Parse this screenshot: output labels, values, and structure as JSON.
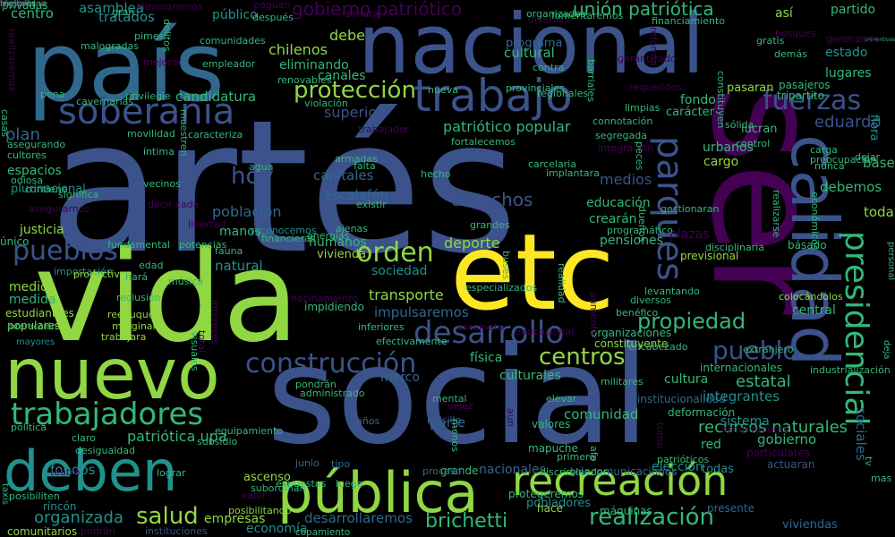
{
  "palette": {
    "background": "#000000",
    "purple": "#440154",
    "indigo": "#3b528b",
    "blue": "#31688e",
    "teal": "#21918c",
    "green": "#35b779",
    "lime": "#90d743",
    "yellow": "#fde725"
  },
  "words": [
    {
      "text": "artés",
      "color": "#3b528b"
    },
    {
      "text": "ser",
      "color": "#440154"
    },
    {
      "text": "social",
      "color": "#3b528b"
    },
    {
      "text": "vida",
      "color": "#90d743"
    },
    {
      "text": "país",
      "color": "#31688e"
    },
    {
      "text": "nacional",
      "color": "#3b528b"
    },
    {
      "text": "etc",
      "color": "#fde725"
    },
    {
      "text": "calidad",
      "color": "#3b528b"
    },
    {
      "text": "nuevo",
      "color": "#90d743"
    },
    {
      "text": "deben",
      "color": "#21918c"
    },
    {
      "text": "pública",
      "color": "#90d743"
    },
    {
      "text": "trabajo",
      "color": "#3b528b"
    },
    {
      "text": "recreación",
      "color": "#90d743"
    },
    {
      "text": "soberanía",
      "color": "#3b528b"
    },
    {
      "text": "presidencial",
      "color": "#35b779"
    },
    {
      "text": "parques",
      "color": "#3b528b"
    },
    {
      "text": "fuerzas",
      "color": "#3b528b"
    },
    {
      "text": "desarrollo",
      "color": "#3b528b"
    },
    {
      "text": "construcción",
      "color": "#3b528b"
    },
    {
      "text": "trabajadores",
      "color": "#35b779"
    },
    {
      "text": "pueblos",
      "color": "#3b528b"
    },
    {
      "text": "orden",
      "color": "#90d743"
    },
    {
      "text": "protección",
      "color": "#90d743"
    },
    {
      "text": "centros",
      "color": "#90d743"
    },
    {
      "text": "pueblo",
      "color": "#3b528b"
    },
    {
      "text": "realización",
      "color": "#35b779"
    },
    {
      "text": "salud",
      "color": "#90d743"
    },
    {
      "text": "brichetti",
      "color": "#35b779"
    },
    {
      "text": "propiedad",
      "color": "#35b779"
    },
    {
      "text": "hoy",
      "color": "#3b528b"
    },
    {
      "text": "derechos",
      "color": "#3b528b"
    },
    {
      "text": "organizada",
      "color": "#21918c"
    },
    {
      "text": "eduardo",
      "color": "#3b528b"
    },
    {
      "text": "unión patriótica",
      "color": "#35b779"
    },
    {
      "text": "gobierno patriótico",
      "color": "#440154"
    },
    {
      "text": "recursos naturales",
      "color": "#35b779"
    },
    {
      "text": "estatal",
      "color": "#35b779"
    },
    {
      "text": "patriótico popular",
      "color": "#35b779"
    },
    {
      "text": "superior",
      "color": "#3b528b"
    },
    {
      "text": "población",
      "color": "#31688e"
    },
    {
      "text": "transporte",
      "color": "#90d743"
    },
    {
      "text": "impulsaremos",
      "color": "#31688e"
    },
    {
      "text": "deporte",
      "color": "#90d743"
    },
    {
      "text": "parte",
      "color": "#31688e"
    },
    {
      "text": "desarrollaremos",
      "color": "#31688e"
    },
    {
      "text": "medios",
      "color": "#3b528b"
    },
    {
      "text": "debe",
      "color": "#90d743"
    },
    {
      "text": "plan",
      "color": "#31688e"
    },
    {
      "text": "patriótica upa",
      "color": "#35b779"
    },
    {
      "text": "centro",
      "color": "#35b779"
    },
    {
      "text": "chilenos",
      "color": "#90d743"
    },
    {
      "text": "integrantes",
      "color": "#21918c"
    },
    {
      "text": "sociales",
      "color": "#31688e"
    },
    {
      "text": "capitales",
      "color": "#31688e"
    },
    {
      "text": "escalafón",
      "color": "#31688e"
    },
    {
      "text": "candidatura",
      "color": "#35b779"
    },
    {
      "text": "cultural",
      "color": "#35b779"
    },
    {
      "text": "comunidad",
      "color": "#35b779"
    },
    {
      "text": "gobierno",
      "color": "#35b779"
    },
    {
      "text": "fondos",
      "color": "#21918c"
    },
    {
      "text": "natural",
      "color": "#21918c"
    },
    {
      "text": "base",
      "color": "#35b779"
    },
    {
      "text": "debemos",
      "color": "#35b779"
    },
    {
      "text": "toda",
      "color": "#90d743"
    },
    {
      "text": "educación",
      "color": "#35b779"
    },
    {
      "text": "crearán",
      "color": "#35b779"
    },
    {
      "text": "sistema",
      "color": "#21918c"
    },
    {
      "text": "cargo",
      "color": "#90d743"
    },
    {
      "text": "urbanos",
      "color": "#35b779"
    },
    {
      "text": "fondo",
      "color": "#35b779"
    },
    {
      "text": "humanos",
      "color": "#35b779"
    },
    {
      "text": "sociedad",
      "color": "#21918c"
    },
    {
      "text": "elección",
      "color": "#21918c"
    },
    {
      "text": "lugares",
      "color": "#35b779"
    },
    {
      "text": "estado",
      "color": "#21918c"
    },
    {
      "text": "partido",
      "color": "#35b779"
    },
    {
      "text": "asamblea",
      "color": "#21918c"
    },
    {
      "text": "tratados",
      "color": "#21918c"
    },
    {
      "text": "público",
      "color": "#21918c"
    },
    {
      "text": "privadas",
      "color": "#35b779"
    },
    {
      "text": "economía",
      "color": "#21918c"
    },
    {
      "text": "empresas",
      "color": "#90d743"
    },
    {
      "text": "plazas",
      "color": "#440154"
    },
    {
      "text": "medida",
      "color": "#35b779"
    },
    {
      "text": "medio",
      "color": "#90d743"
    },
    {
      "text": "manos",
      "color": "#35b779"
    },
    {
      "text": "espacios",
      "color": "#35b779"
    },
    {
      "text": "justicia",
      "color": "#90d743"
    },
    {
      "text": "red",
      "color": "#35b779"
    },
    {
      "text": "central",
      "color": "#35b779"
    },
    {
      "text": "cultura",
      "color": "#35b779"
    },
    {
      "text": "pensiones",
      "color": "#35b779"
    },
    {
      "text": "culturales",
      "color": "#35b779"
    },
    {
      "text": "física",
      "color": "#35b779"
    },
    {
      "text": "marco",
      "color": "#31688e"
    },
    {
      "text": "nacionales",
      "color": "#31688e"
    },
    {
      "text": "todas",
      "color": "#21918c"
    },
    {
      "text": "así",
      "color": "#90d743"
    },
    {
      "text": "viviendas",
      "color": "#31688e"
    },
    {
      "text": "lucran",
      "color": "#35b779"
    },
    {
      "text": "programa",
      "color": "#31688e"
    },
    {
      "text": "eliminando",
      "color": "#35b779"
    },
    {
      "text": "canales",
      "color": "#35b779"
    },
    {
      "text": "vivienda",
      "color": "#90d743"
    },
    {
      "text": "pasaran",
      "color": "#90d743"
    },
    {
      "text": "carácter",
      "color": "#35b779"
    },
    {
      "text": "flora",
      "color": "#21918c"
    },
    {
      "text": "plurinacional",
      "color": "#21918c"
    },
    {
      "text": "único",
      "color": "#35b779"
    },
    {
      "text": "estudiantiles",
      "color": "#90d743"
    },
    {
      "text": "populares",
      "color": "#90d743"
    },
    {
      "text": "ascenso",
      "color": "#90d743"
    },
    {
      "text": "presente",
      "color": "#31688e"
    },
    {
      "text": "máquinas",
      "color": "#35b779"
    },
    {
      "text": "mapuche",
      "color": "#35b779"
    },
    {
      "text": "pobladores",
      "color": "#21918c"
    },
    {
      "text": "hace",
      "color": "#90d743"
    },
    {
      "text": "constituyente",
      "color": "#90d743"
    },
    {
      "text": "organizaciones",
      "color": "#35b779"
    },
    {
      "text": "pasajeros",
      "color": "#35b779"
    },
    {
      "text": "tripartito",
      "color": "#35b779"
    },
    {
      "text": "preventivas",
      "color": "#35b779"
    },
    {
      "text": "básado",
      "color": "#35b779"
    },
    {
      "text": "previsional",
      "color": "#90d743"
    },
    {
      "text": "internacionales",
      "color": "#35b779"
    },
    {
      "text": "industrialización",
      "color": "#35b779"
    },
    {
      "text": "aseguradoras",
      "color": "#440154"
    },
    {
      "text": "particulares",
      "color": "#440154"
    },
    {
      "text": "actuaran",
      "color": "#3b528b"
    },
    {
      "text": "deformación",
      "color": "#35b779"
    },
    {
      "text": "valores",
      "color": "#35b779"
    },
    {
      "text": "institucionalidad",
      "color": "#31688e"
    },
    {
      "text": "rincón",
      "color": "#21918c"
    },
    {
      "text": "comunitarios",
      "color": "#90d743"
    },
    {
      "text": "posibilitando",
      "color": "#90d743"
    },
    {
      "text": "copamiento",
      "color": "#35b779"
    },
    {
      "text": "telecomunicaciones",
      "color": "#31688e"
    },
    {
      "text": "protegeremos",
      "color": "#35b779"
    },
    {
      "text": "demás",
      "color": "#35b779"
    },
    {
      "text": "bosques",
      "color": "#440154"
    },
    {
      "text": "podrán",
      "color": "#440154"
    },
    {
      "text": "instituciones",
      "color": "#3b528b"
    },
    {
      "text": "bolsillo",
      "color": "#3b528b"
    },
    {
      "text": "grande",
      "color": "#35b779"
    },
    {
      "text": "discriminador",
      "color": "#35b779"
    },
    {
      "text": "primera",
      "color": "#35b779"
    },
    {
      "text": "elevar",
      "color": "#35b779"
    },
    {
      "text": "proceso",
      "color": "#31688e"
    },
    {
      "text": "luego",
      "color": "#35b779"
    },
    {
      "text": "años",
      "color": "#31688e"
    },
    {
      "text": "junio",
      "color": "#31688e"
    },
    {
      "text": "tipo",
      "color": "#31688e"
    },
    {
      "text": "claro",
      "color": "#35b779"
    },
    {
      "text": "política",
      "color": "#35b779"
    },
    {
      "text": "desigualdad",
      "color": "#35b779"
    },
    {
      "text": "lograr",
      "color": "#35b779"
    },
    {
      "text": "equipamiento",
      "color": "#35b779"
    },
    {
      "text": "subsidio",
      "color": "#35b779"
    },
    {
      "text": "subordinan",
      "color": "#35b779"
    },
    {
      "text": "pondrán",
      "color": "#35b779"
    },
    {
      "text": "administrado",
      "color": "#35b779"
    },
    {
      "text": "mental",
      "color": "#35b779"
    },
    {
      "text": "asesinato",
      "color": "#440154"
    },
    {
      "text": "educacional",
      "color": "#440154"
    },
    {
      "text": "benéfico",
      "color": "#35b779"
    },
    {
      "text": "encabezado",
      "color": "#35b779"
    },
    {
      "text": "extranjero",
      "color": "#35b779"
    },
    {
      "text": "colocándolos",
      "color": "#90d743"
    },
    {
      "text": "disciplinaria",
      "color": "#35b779"
    },
    {
      "text": "hacinamiento",
      "color": "#440154"
    },
    {
      "text": "impidiendo",
      "color": "#35b779"
    },
    {
      "text": "reclusión",
      "color": "#35b779"
    },
    {
      "text": "reeduquen",
      "color": "#90d743"
    },
    {
      "text": "marginal",
      "color": "#90d743"
    },
    {
      "text": "trabajara",
      "color": "#90d743"
    },
    {
      "text": "interacción",
      "color": "#35b779"
    },
    {
      "text": "mayores",
      "color": "#21918c"
    },
    {
      "text": "importación",
      "color": "#21918c"
    },
    {
      "text": "productivo",
      "color": "#90d743"
    },
    {
      "text": "hará",
      "color": "#35b779"
    },
    {
      "text": "música",
      "color": "#35b779"
    },
    {
      "text": "edad",
      "color": "#35b779"
    },
    {
      "text": "fauna",
      "color": "#35b779"
    },
    {
      "text": "reconocemos",
      "color": "#21918c"
    },
    {
      "text": "financieras",
      "color": "#35b779"
    },
    {
      "text": "energías",
      "color": "#35b779"
    },
    {
      "text": "potencias",
      "color": "#35b779"
    },
    {
      "text": "fundamental",
      "color": "#35b779"
    },
    {
      "text": "asegurarnos",
      "color": "#440154"
    },
    {
      "text": "decir cada",
      "color": "#440154"
    },
    {
      "text": "libertad",
      "color": "#440154"
    },
    {
      "text": "ajenas",
      "color": "#35b779"
    },
    {
      "text": "existir",
      "color": "#35b779"
    },
    {
      "text": "grandes",
      "color": "#35b779"
    },
    {
      "text": "programático",
      "color": "#35b779"
    },
    {
      "text": "hecho",
      "color": "#35b779"
    },
    {
      "text": "falta",
      "color": "#35b779"
    },
    {
      "text": "agua",
      "color": "#35b779"
    },
    {
      "text": "íntima",
      "color": "#35b779"
    },
    {
      "text": "vecinos",
      "color": "#35b779"
    },
    {
      "text": "significa",
      "color": "#35b779"
    },
    {
      "text": "contiene",
      "color": "#35b779"
    },
    {
      "text": "cultores",
      "color": "#35b779"
    },
    {
      "text": "asegurando",
      "color": "#35b779"
    },
    {
      "text": "casas",
      "color": "#35b779"
    },
    {
      "text": "odiosa",
      "color": "#35b779"
    },
    {
      "text": "movilidad",
      "color": "#35b779"
    },
    {
      "text": "caracteriza",
      "color": "#35b779"
    },
    {
      "text": "trabajador",
      "color": "#440154"
    },
    {
      "text": "muestren",
      "color": "#35b779"
    },
    {
      "text": "cavernarias",
      "color": "#35b779"
    },
    {
      "text": "privilegie",
      "color": "#35b779"
    },
    {
      "text": "pena",
      "color": "#35b779"
    },
    {
      "text": "violación",
      "color": "#35b779"
    },
    {
      "text": "renovables",
      "color": "#35b779"
    },
    {
      "text": "nueva",
      "color": "#35b779"
    },
    {
      "text": "provinciales",
      "color": "#35b779"
    },
    {
      "text": "regionales",
      "color": "#35b779"
    },
    {
      "text": "requeridos",
      "color": "#440154"
    },
    {
      "text": "limpias",
      "color": "#35b779"
    },
    {
      "text": "sólida",
      "color": "#35b779"
    },
    {
      "text": "connotación",
      "color": "#35b779"
    },
    {
      "text": "segregada",
      "color": "#35b779"
    },
    {
      "text": "integración",
      "color": "#440154"
    },
    {
      "text": "fortalecemos",
      "color": "#35b779"
    },
    {
      "text": "carcelaria",
      "color": "#35b779"
    },
    {
      "text": "implantara",
      "color": "#35b779"
    },
    {
      "text": "armadas",
      "color": "#35b779"
    },
    {
      "text": "control",
      "color": "#35b779"
    },
    {
      "text": "gestionaran",
      "color": "#35b779"
    },
    {
      "text": "carga",
      "color": "#35b779"
    },
    {
      "text": "preocupación",
      "color": "#35b779"
    },
    {
      "text": "nunca",
      "color": "#35b779"
    },
    {
      "text": "peces",
      "color": "#35b779"
    },
    {
      "text": "dejar",
      "color": "#35b779"
    },
    {
      "text": "realizarse",
      "color": "#35b779"
    },
    {
      "text": "económicos",
      "color": "#35b779"
    },
    {
      "text": "diversos",
      "color": "#35b779"
    },
    {
      "text": "levantando",
      "color": "#35b779"
    },
    {
      "text": "realidad",
      "color": "#35b779"
    },
    {
      "text": "mas",
      "color": "#35b779"
    },
    {
      "text": "tv",
      "color": "#35b779"
    },
    {
      "text": "personal",
      "color": "#35b779"
    },
    {
      "text": "deja",
      "color": "#35b779"
    },
    {
      "text": "aimara",
      "color": "#440154"
    },
    {
      "text": "organizados",
      "color": "#35b779"
    },
    {
      "text": "financiamiento",
      "color": "#35b779"
    },
    {
      "text": "diversas",
      "color": "#440154"
    },
    {
      "text": "fomentaremos",
      "color": "#35b779"
    },
    {
      "text": "eliminaremos",
      "color": "#440154"
    },
    {
      "text": "paguen",
      "color": "#440154"
    },
    {
      "text": "después",
      "color": "#35b779"
    },
    {
      "text": "comunidades",
      "color": "#35b779"
    },
    {
      "text": "empleador",
      "color": "#35b779"
    },
    {
      "text": "mejorar",
      "color": "#440154"
    },
    {
      "text": "pimes",
      "color": "#35b779"
    },
    {
      "text": "malogradas",
      "color": "#35b779"
    },
    {
      "text": "contra",
      "color": "#35b779"
    },
    {
      "text": "barriales",
      "color": "#35b779"
    },
    {
      "text": "garantizado",
      "color": "#440154"
    },
    {
      "text": "realizaremos",
      "color": "#440154"
    },
    {
      "text": "generando",
      "color": "#440154"
    },
    {
      "text": "taxis",
      "color": "#35b779"
    },
    {
      "text": "valor",
      "color": "#440154"
    },
    {
      "text": "posibiliten",
      "color": "#35b779"
    },
    {
      "text": "teatro",
      "color": "#440154"
    },
    {
      "text": "expuestos",
      "color": "#35b779"
    },
    {
      "text": "menos",
      "color": "#35b779"
    },
    {
      "text": "patrióticos",
      "color": "#35b779"
    },
    {
      "text": "torno",
      "color": "#440154"
    },
    {
      "text": "afp",
      "color": "#35b779"
    },
    {
      "text": "vejez",
      "color": "#440154"
    },
    {
      "text": "aun",
      "color": "#440154"
    },
    {
      "text": "inferiores",
      "color": "#35b779"
    },
    {
      "text": "efectivamente",
      "color": "#35b779"
    },
    {
      "text": "especializados",
      "color": "#35b779"
    },
    {
      "text": "buses",
      "color": "#35b779"
    },
    {
      "text": "visuales",
      "color": "#35b779"
    },
    {
      "text": "intereses",
      "color": "#440154"
    },
    {
      "text": "total",
      "color": "#440154"
    },
    {
      "text": "aumentar",
      "color": "#440154"
    },
    {
      "text": "dueños",
      "color": "#35b779"
    },
    {
      "text": "militares",
      "color": "#35b779"
    },
    {
      "text": "constituyen",
      "color": "#35b779"
    },
    {
      "text": "gratis",
      "color": "#35b779"
    },
    {
      "text": "reforma",
      "color": "#440154"
    },
    {
      "text": "delitos",
      "color": "#35b779"
    },
    {
      "text": "gran",
      "color": "#35b779"
    },
    {
      "text": "tamaño",
      "color": "#35b779"
    },
    {
      "text": "dignos",
      "color": "#35b779"
    },
    {
      "text": "ciudadano",
      "color": "#35b779"
    },
    {
      "text": "desatara",
      "color": "#440154"
    },
    {
      "text": "mar",
      "color": "#440154"
    },
    {
      "text": "graves",
      "color": "#440154"
    },
    {
      "text": "mejores",
      "color": "#35b779"
    }
  ]
}
